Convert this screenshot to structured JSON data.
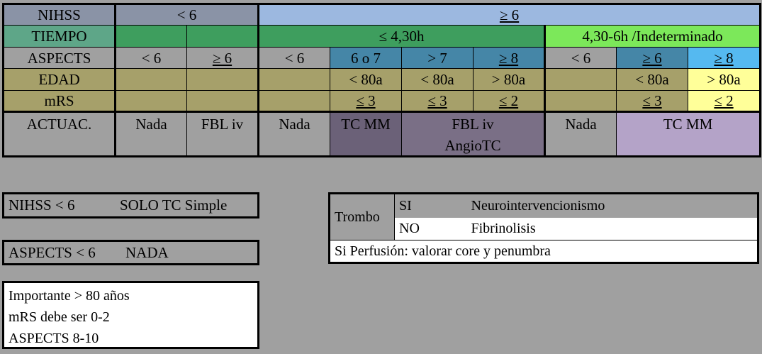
{
  "colors": {
    "bg": "#a0a0a0",
    "slate": "#8a93a6",
    "light_blue": "#9cb8e0",
    "teal_green": "#5ea688",
    "green": "#3e9e5e",
    "bright_green": "#7ce85a",
    "steel_blue": "#4586a7",
    "sky_blue": "#55b9f0",
    "olive": "#a6a06a",
    "yellow": "#ffff99",
    "dark_purple": "#6b6178",
    "mid_purple": "#7a6f86",
    "lilac": "#b4a3c8"
  },
  "table": {
    "rows": {
      "nihss": {
        "label": "NIHSS",
        "low": "< 6",
        "high": "≥ 6"
      },
      "tiempo": {
        "label": "TIEMPO",
        "early": "≤ 4,30h",
        "late": "4,30-6h /Indeterminado"
      },
      "aspects": {
        "label": "ASPECTS",
        "cells": [
          "< 6",
          "≥ 6",
          "< 6",
          "6 o 7",
          "> 7",
          "≥ 8",
          "< 6",
          "≥ 6",
          "≥ 8"
        ]
      },
      "edad": {
        "label": "EDAD",
        "cells": [
          "",
          "",
          "",
          "< 80a",
          "< 80a",
          "> 80a",
          "",
          "< 80a",
          "> 80a"
        ]
      },
      "mrs": {
        "label": "mRS",
        "cells": [
          "",
          "",
          "",
          "≤ 3",
          "≤ 3",
          "≤ 2",
          "",
          "≤ 3",
          "≤ 2"
        ]
      },
      "actuac": {
        "label": "ACTUAC.",
        "nada1": "Nada",
        "fbl1": "FBL iv",
        "nada2": "Nada",
        "tcmm1": "TC MM",
        "fbl2_line1": "FBL iv",
        "fbl2_line2": "AngioTC",
        "nada3": "Nada",
        "tcmm2": "TC MM"
      }
    }
  },
  "notes": {
    "nihss_box": {
      "left": "NIHSS < 6",
      "right": "SOLO TC Simple"
    },
    "aspects_box": {
      "left": "ASPECTS < 6",
      "right": "NADA"
    },
    "important_box": {
      "line1": "Importante > 80 años",
      "line2": "mRS debe ser 0-2",
      "line3": "ASPECTS 8-10"
    },
    "trombo_box": {
      "label": "Trombo",
      "si": "SI",
      "si_action": "Neurointervencionismo",
      "no": "NO",
      "no_action": "Fibrinolisis",
      "perfusion": "Si Perfusión: valorar core y penumbra"
    }
  }
}
